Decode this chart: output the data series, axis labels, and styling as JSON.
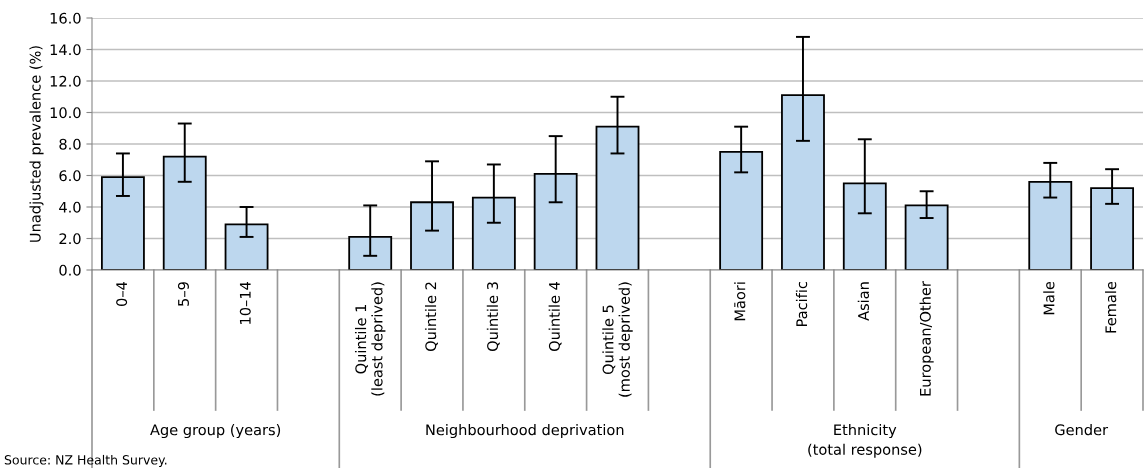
{
  "chart_data": {
    "type": "bar",
    "ylabel": "Unadjusted prevalence (%)",
    "categories": [
      "0–4",
      "5–9",
      "10–14",
      null,
      "Quintile 1\n(least deprived)",
      "Quintile 2",
      "Quintile 3",
      "Quintile 4",
      "Quintile 5\n(most deprived)",
      null,
      "Māori",
      "Pacific",
      "Asian",
      "European/Other",
      null,
      "Male",
      "Female"
    ],
    "values": [
      5.9,
      7.2,
      2.9,
      null,
      2.1,
      4.3,
      4.6,
      6.1,
      9.1,
      null,
      7.5,
      11.1,
      5.5,
      4.1,
      null,
      5.6,
      5.2
    ],
    "errors": [
      [
        4.7,
        7.4
      ],
      [
        5.6,
        9.3
      ],
      [
        2.1,
        4.0
      ],
      null,
      [
        0.9,
        4.1
      ],
      [
        2.5,
        6.9
      ],
      [
        3.0,
        6.7
      ],
      [
        4.3,
        8.5
      ],
      [
        7.4,
        11.0
      ],
      null,
      [
        6.2,
        9.1
      ],
      [
        8.2,
        14.8
      ],
      [
        3.6,
        8.3
      ],
      [
        3.3,
        5.0
      ],
      null,
      [
        4.6,
        6.8
      ],
      [
        4.2,
        6.4
      ]
    ],
    "color": "#bdd7ee",
    "ylim": [
      0,
      16
    ],
    "yticks": [
      {
        "value": 0,
        "label": "0.0"
      },
      {
        "value": 2,
        "label": "2.0"
      },
      {
        "value": 4,
        "label": "4.0"
      },
      {
        "value": 6,
        "label": "6.0"
      },
      {
        "value": 8,
        "label": "8.0"
      },
      {
        "value": 10,
        "label": "10.0"
      },
      {
        "value": 12,
        "label": "12.0"
      },
      {
        "value": 14,
        "label": "14.0"
      },
      {
        "value": 16,
        "label": "16.0"
      }
    ],
    "grid": "y",
    "legend": false,
    "annotations": [
      "Age group (years)",
      "Neighbourhood deprivation",
      "Ethnicity\n(total response)",
      "Gender",
      "Source: NZ Health Survey."
    ]
  }
}
